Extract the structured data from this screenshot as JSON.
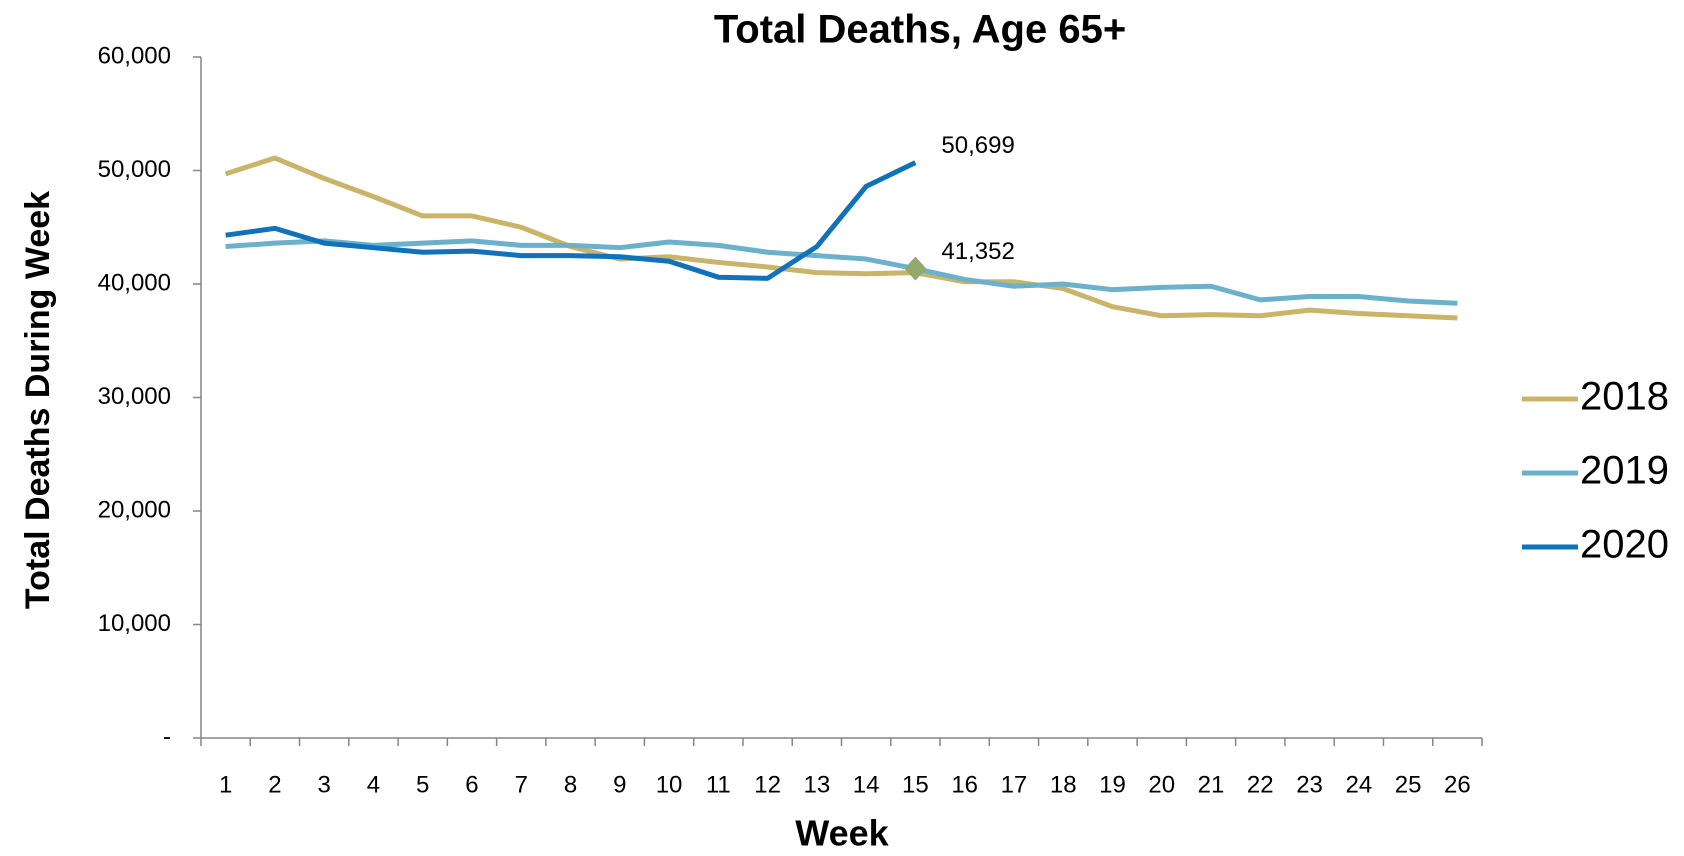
{
  "chart_data": {
    "type": "line",
    "title": "Total Deaths, Age 65+",
    "x_label": "Week",
    "y_label": "Total Deaths During Week",
    "categories": [
      "1",
      "2",
      "3",
      "4",
      "5",
      "6",
      "7",
      "8",
      "9",
      "10",
      "11",
      "12",
      "13",
      "14",
      "15",
      "16",
      "17",
      "18",
      "19",
      "20",
      "21",
      "22",
      "23",
      "24",
      "25",
      "26"
    ],
    "series": [
      {
        "name": "2018",
        "color": "#c9b46a",
        "values": [
          49700,
          51100,
          49300,
          47700,
          46000,
          46000,
          45000,
          43300,
          42200,
          42400,
          41900,
          41500,
          41000,
          40900,
          41000,
          40200,
          40200,
          39600,
          38000,
          37200,
          37300,
          37200,
          37700,
          37400,
          37200,
          37000
        ]
      },
      {
        "name": "2019",
        "color": "#6bb1cc",
        "marker": "diamond",
        "marker_color": "#93a86b",
        "values": [
          43300,
          43600,
          43800,
          43400,
          43600,
          43800,
          43400,
          43400,
          43200,
          43700,
          43400,
          42800,
          42500,
          42200,
          41352,
          40400,
          39800,
          40000,
          39500,
          39700,
          39800,
          38600,
          38900,
          38900,
          38500,
          38300
        ],
        "value_labels": [
          null,
          null,
          null,
          null,
          null,
          null,
          null,
          null,
          null,
          null,
          null,
          null,
          null,
          null,
          "41,352",
          null,
          null,
          null,
          null,
          null,
          null,
          null,
          null,
          null,
          null,
          null
        ]
      },
      {
        "name": "2020",
        "color": "#0f72bb",
        "values": [
          44300,
          44900,
          43600,
          43200,
          42800,
          42900,
          42500,
          42500,
          42400,
          42000,
          40600,
          40500,
          43300,
          48600,
          50699,
          null,
          null,
          null,
          null,
          null,
          null,
          null,
          null,
          null,
          null,
          null
        ],
        "value_labels": [
          null,
          null,
          null,
          null,
          null,
          null,
          null,
          null,
          null,
          null,
          null,
          null,
          null,
          null,
          "50,699",
          null,
          null,
          null,
          null,
          null,
          null,
          null,
          null,
          null,
          null,
          null
        ]
      }
    ],
    "ylim": [
      0,
      60000
    ],
    "yticks": [
      {
        "value": 0,
        "label": "-"
      },
      {
        "value": 10000,
        "label": "10,000"
      },
      {
        "value": 20000,
        "label": "20,000"
      },
      {
        "value": 30000,
        "label": "30,000"
      },
      {
        "value": 40000,
        "label": "40,000"
      },
      {
        "value": 50000,
        "label": "50,000"
      },
      {
        "value": 60000,
        "label": "60,000"
      }
    ],
    "legend": "right"
  }
}
